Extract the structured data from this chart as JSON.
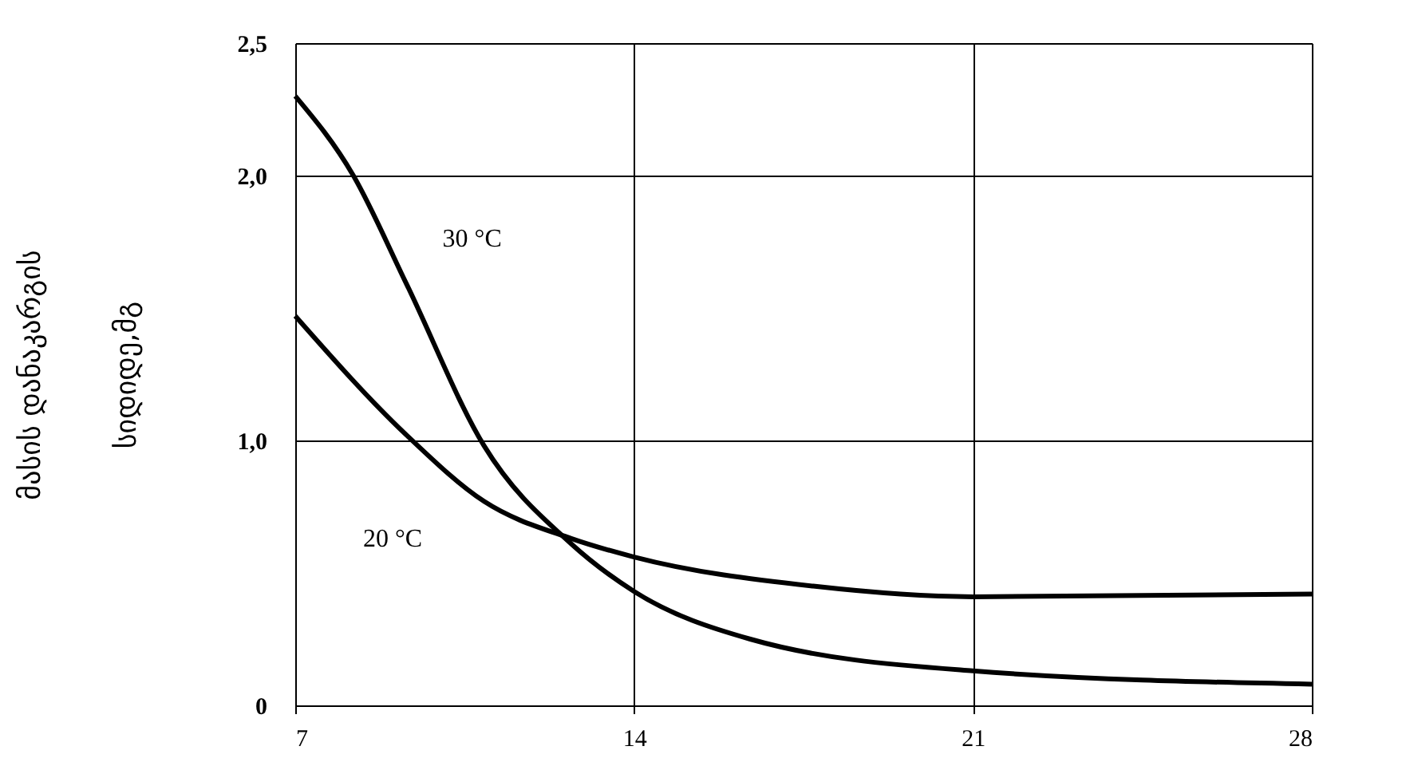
{
  "chart_data": {
    "type": "line",
    "ylabel": "მასის დანაკარგის\nსიდიდე,მგ",
    "series": [
      {
        "color": "#000000",
        "x": [
          7,
          8.2,
          9.3,
          10.9,
          12.7,
          14,
          16.4,
          21,
          28
        ],
        "values": [
          2.3,
          2.0,
          1.59,
          0.98,
          0.61,
          0.43,
          0.25,
          0.13,
          0.08
        ]
      },
      {
        "color": "#000000",
        "x": [
          7,
          9.3,
          10.9,
          12.7,
          14,
          17.7,
          21,
          28
        ],
        "values": [
          1.47,
          1.02,
          0.77,
          0.63,
          0.56,
          0.45,
          0.41,
          0.42
        ]
      }
    ],
    "annotations": [
      {
        "text": "30 °C",
        "x": 9.5,
        "y": 1.55
      },
      {
        "text": "20 °C",
        "x": 10,
        "y": 0.9
      }
    ],
    "xlim": [
      7,
      28
    ],
    "xticks": [
      7,
      14,
      21,
      28
    ],
    "ylim": [
      0,
      2.5
    ],
    "yticks": [
      {
        "value": 0,
        "label": "0"
      },
      {
        "value": 1,
        "label": "1,0"
      },
      {
        "value": 2,
        "label": "2,0"
      },
      {
        "value": 2.5,
        "label": "2,5"
      }
    ],
    "grid": true,
    "marker": "none",
    "line_style": "solid"
  }
}
